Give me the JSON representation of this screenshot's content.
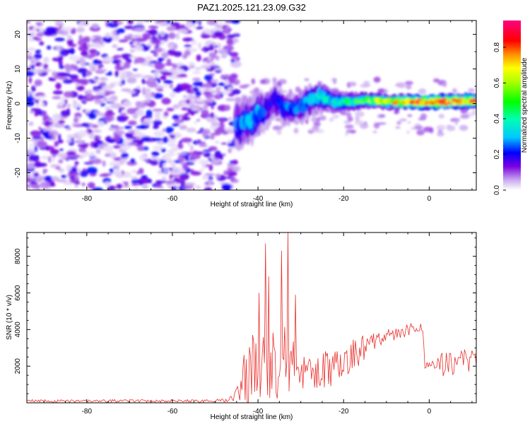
{
  "title": "PAZ1.2025.121.23.09.G32",
  "chart_data": [
    {
      "type": "heatmap",
      "xlabel": "Height of straight line (km)",
      "ylabel": "Frequency (Hz)",
      "xlim": [
        -94,
        11
      ],
      "ylim": [
        -25,
        24
      ],
      "xticks": [
        -80,
        -60,
        -40,
        -20,
        0
      ],
      "yticks": [
        -20,
        -10,
        0,
        10,
        20
      ],
      "xtick_labels": [
        "-80",
        "-60",
        "-40",
        "-20",
        "0"
      ],
      "ytick_labels": [
        "-20",
        "-10",
        "0",
        "10",
        "20"
      ],
      "colorbar": {
        "label": "Normalized spectral amplitude",
        "range": [
          0,
          0.95
        ],
        "ticks": [
          0.0,
          0.2,
          0.4,
          0.6,
          0.8
        ],
        "tick_labels": [
          "0.0",
          "0.2",
          "0.4",
          "0.6",
          "0.8"
        ]
      },
      "noise_region": {
        "x_range": [
          -94,
          -45
        ],
        "amplitude_range": [
          0.02,
          0.22
        ]
      },
      "ridge": [
        {
          "x": -44,
          "freq": -6,
          "amp": 0.25,
          "width": 3.5
        },
        {
          "x": -42,
          "freq": -5.5,
          "amp": 0.3,
          "width": 3
        },
        {
          "x": -40,
          "freq": -3,
          "amp": 0.28,
          "width": 3
        },
        {
          "x": -38,
          "freq": -1.5,
          "amp": 0.22,
          "width": 2.5
        },
        {
          "x": -36,
          "freq": 1,
          "amp": 0.22,
          "width": 2
        },
        {
          "x": -34,
          "freq": -1.5,
          "amp": 0.25,
          "width": 2
        },
        {
          "x": -30,
          "freq": -1,
          "amp": 0.28,
          "width": 2
        },
        {
          "x": -26,
          "freq": 2,
          "amp": 0.32,
          "width": 2
        },
        {
          "x": -22,
          "freq": 0.5,
          "amp": 0.38,
          "width": 1.5
        },
        {
          "x": -18,
          "freq": 0.5,
          "amp": 0.45,
          "width": 1.2
        },
        {
          "x": -14,
          "freq": 1,
          "amp": 0.55,
          "width": 1
        },
        {
          "x": -10,
          "freq": 0.5,
          "amp": 0.65,
          "width": 1
        },
        {
          "x": -6,
          "freq": 0.5,
          "amp": 0.75,
          "width": 1
        },
        {
          "x": -2,
          "freq": 0.5,
          "amp": 0.85,
          "width": 1
        },
        {
          "x": 2,
          "freq": 0.5,
          "amp": 0.9,
          "width": 1
        },
        {
          "x": 6,
          "freq": 0.7,
          "amp": 0.88,
          "width": 1
        },
        {
          "x": 10,
          "freq": 0.7,
          "amp": 0.8,
          "width": 1
        }
      ]
    },
    {
      "type": "line",
      "xlabel": "Height of straight line (km)",
      "ylabel": "SNR (10 * v/v)",
      "xlim": [
        -94,
        11
      ],
      "ylim": [
        0,
        9300
      ],
      "xticks": [
        -80,
        -60,
        -40,
        -20,
        0
      ],
      "yticks": [
        2000,
        4000,
        6000,
        8000
      ],
      "xtick_labels": [
        "-80",
        "-60",
        "-40",
        "-20",
        "0"
      ],
      "ytick_labels": [
        "2000",
        "4000",
        "6000",
        "8000"
      ],
      "color": "#e8302c",
      "x_step": 0.25,
      "envelope": [
        {
          "x": -94,
          "mean": 100,
          "spread": 80
        },
        {
          "x": -50,
          "mean": 100,
          "spread": 80
        },
        {
          "x": -46,
          "mean": 250,
          "spread": 200
        },
        {
          "x": -44,
          "mean": 900,
          "spread": 900
        },
        {
          "x": -42,
          "mean": 2000,
          "spread": 2000
        },
        {
          "x": -38,
          "mean": 2600,
          "spread": 2600
        },
        {
          "x": -35,
          "mean": 2200,
          "spread": 2200
        },
        {
          "x": -32,
          "mean": 2000,
          "spread": 1800
        },
        {
          "x": -28,
          "mean": 1600,
          "spread": 1200
        },
        {
          "x": -24,
          "mean": 1900,
          "spread": 1200
        },
        {
          "x": -20,
          "mean": 2300,
          "spread": 1100
        },
        {
          "x": -17,
          "mean": 2800,
          "spread": 1000
        },
        {
          "x": -14,
          "mean": 3300,
          "spread": 600
        },
        {
          "x": -10,
          "mean": 3600,
          "spread": 450
        },
        {
          "x": -5,
          "mean": 4000,
          "spread": 350
        },
        {
          "x": -1.5,
          "mean": 4100,
          "spread": 250
        },
        {
          "x": -1,
          "mean": 2000,
          "spread": 300
        },
        {
          "x": 3,
          "mean": 2100,
          "spread": 700
        },
        {
          "x": 7,
          "mean": 2300,
          "spread": 700
        },
        {
          "x": 11,
          "mean": 2500,
          "spread": 700
        }
      ],
      "peaks": [
        {
          "x": -39.7,
          "y": 6000
        },
        {
          "x": -38.3,
          "y": 8700
        },
        {
          "x": -37.5,
          "y": 6900
        },
        {
          "x": -34.5,
          "y": 8300
        },
        {
          "x": -33.0,
          "y": 9300
        },
        {
          "x": -31.3,
          "y": 5900
        }
      ]
    }
  ]
}
